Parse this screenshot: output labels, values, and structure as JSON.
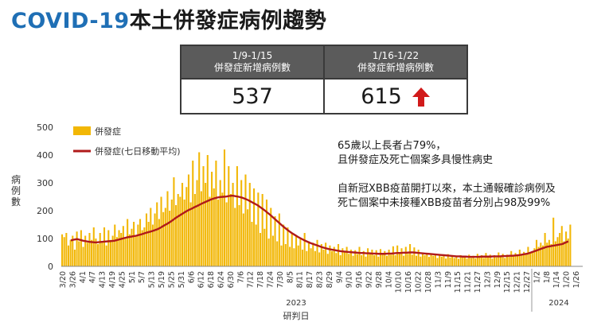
{
  "header": {
    "title_en": "COVID-19",
    "title_zh": "本土併發症病例趨勢"
  },
  "stats": {
    "headers": [
      {
        "line1": "1/9-1/15",
        "line2": "併發症新增病例數"
      },
      {
        "line1": "1/16-1/22",
        "line2": "併發症新增病例數"
      }
    ],
    "values": [
      "537",
      "615"
    ]
  },
  "notes": {
    "line1": "65歲以上長者占79%，",
    "line2": "且併發症及死亡個案多具慢性病史",
    "line3": "自新冠XBB疫苗開打以來，本土通報確診病例及",
    "line4": "死亡個案中未接種XBB疫苗者分別占98及99%"
  },
  "colors": {
    "bar": "#f2b705",
    "line": "#b01a1a",
    "arrow": "#d11a1a",
    "title_blue": "#1f6fb5"
  },
  "chart_data": {
    "type": "bar",
    "ylabel": "病例數",
    "xlabel": "研判日",
    "ylim": [
      0,
      500
    ],
    "yticks": [
      0,
      100,
      200,
      300,
      400,
      500
    ],
    "xticks": [
      "3/20",
      "3/26",
      "4/1",
      "4/7",
      "4/13",
      "4/19",
      "4/25",
      "5/1",
      "5/7",
      "5/13",
      "5/19",
      "5/25",
      "5/31",
      "6/6",
      "6/12",
      "6/18",
      "6/24",
      "6/30",
      "7/6",
      "7/12",
      "7/18",
      "7/24",
      "7/30",
      "8/5",
      "8/11",
      "8/17",
      "8/23",
      "8/29",
      "9/4",
      "9/10",
      "9/16",
      "9/22",
      "9/28",
      "10/4",
      "10/10",
      "10/16",
      "10/22",
      "10/28",
      "11/3",
      "11/9",
      "11/15",
      "11/21",
      "11/27",
      "12/3",
      "12/9",
      "12/15",
      "12/21",
      "12/27",
      "1/2",
      "1/8",
      "1/14",
      "1/20",
      "1/26"
    ],
    "years": [
      "2023",
      "2024"
    ],
    "legend": [
      "併發症",
      "併發症(七日移動平均)"
    ],
    "legend_position": "top-left",
    "series": [
      {
        "name": "併發症",
        "kind": "bar",
        "values": [
          115,
          105,
          120,
          75,
          95,
          110,
          60,
          125,
          90,
          130,
          70,
          110,
          85,
          120,
          95,
          140,
          100,
          80,
          120,
          90,
          140,
          75,
          130,
          95,
          110,
          150,
          105,
          130,
          120,
          145,
          100,
          170,
          115,
          135,
          160,
          110,
          150,
          170,
          130,
          140,
          190,
          160,
          210,
          150,
          190,
          230,
          170,
          250,
          195,
          210,
          270,
          200,
          240,
          320,
          220,
          260,
          250,
          300,
          240,
          285,
          330,
          230,
          380,
          260,
          310,
          410,
          270,
          360,
          300,
          400,
          250,
          340,
          280,
          380,
          240,
          310,
          265,
          420,
          230,
          360,
          260,
          300,
          210,
          360,
          220,
          310,
          190,
          330,
          205,
          300,
          160,
          280,
          150,
          265,
          120,
          260,
          135,
          240,
          100,
          210,
          110,
          180,
          90,
          190,
          75,
          150,
          80,
          140,
          70,
          120,
          65,
          110,
          75,
          100,
          60,
          120,
          55,
          90,
          65,
          85,
          55,
          95,
          50,
          80,
          60,
          85,
          45,
          75,
          55,
          70,
          48,
          80,
          40,
          65,
          50,
          70,
          45,
          60,
          38,
          58,
          44,
          70,
          40,
          55,
          35,
          65,
          48,
          60,
          40,
          58,
          35,
          62,
          45,
          55,
          38,
          60,
          42,
          72,
          40,
          75,
          45,
          65,
          38,
          70,
          45,
          80,
          42,
          68,
          38,
          60,
          35,
          50,
          40,
          48,
          34,
          45,
          38,
          40,
          30,
          42,
          35,
          38,
          28,
          44,
          32,
          40,
          30,
          35,
          27,
          40,
          32,
          36,
          28,
          42,
          30,
          38,
          28,
          45,
          32,
          40,
          30,
          48,
          35,
          42,
          28,
          40,
          32,
          50,
          35,
          45,
          30,
          42,
          35,
          55,
          38,
          48,
          40,
          60,
          42,
          52,
          45,
          70,
          48,
          55,
          65,
          95,
          70,
          85,
          75,
          120,
          85,
          95,
          80,
          175,
          90,
          105,
          120,
          145,
          90,
          125,
          100,
          150
        ],
        "note": "daily bars (approximate)"
      },
      {
        "name": "併發症(七日移動平均)",
        "kind": "line",
        "values": [
          93,
          96,
          98,
          95,
          92,
          90,
          88,
          87,
          86,
          87,
          88,
          89,
          90,
          91,
          92,
          95,
          98,
          101,
          104,
          106,
          108,
          110,
          113,
          116,
          120,
          123,
          126,
          130,
          134,
          140,
          147,
          153,
          160,
          168,
          176,
          183,
          190,
          197,
          203,
          208,
          214,
          219,
          225,
          230,
          235,
          240,
          244,
          247,
          249,
          250,
          251,
          253,
          254,
          252,
          250,
          247,
          243,
          238,
          232,
          226,
          220,
          212,
          204,
          195,
          186,
          176,
          166,
          156,
          146,
          137,
          128,
          120,
          113,
          106,
          100,
          94,
          89,
          84,
          80,
          76,
          72,
          68,
          65,
          62,
          60,
          58,
          56,
          54,
          53,
          52,
          51,
          50,
          49,
          48,
          48,
          47,
          47,
          46,
          46,
          45,
          45,
          45,
          46,
          46,
          47,
          48,
          48,
          49,
          49,
          50,
          50,
          49,
          48,
          47,
          46,
          45,
          44,
          43,
          42,
          41,
          40,
          39,
          38,
          37,
          36,
          36,
          35,
          35,
          34,
          34,
          34,
          34,
          35,
          35,
          35,
          35,
          36,
          36,
          36,
          37,
          37,
          38,
          38,
          39,
          40,
          42,
          44,
          46,
          50,
          54,
          58,
          62,
          66,
          70,
          72,
          74,
          76,
          78,
          80,
          85,
          90
        ]
      }
    ]
  }
}
